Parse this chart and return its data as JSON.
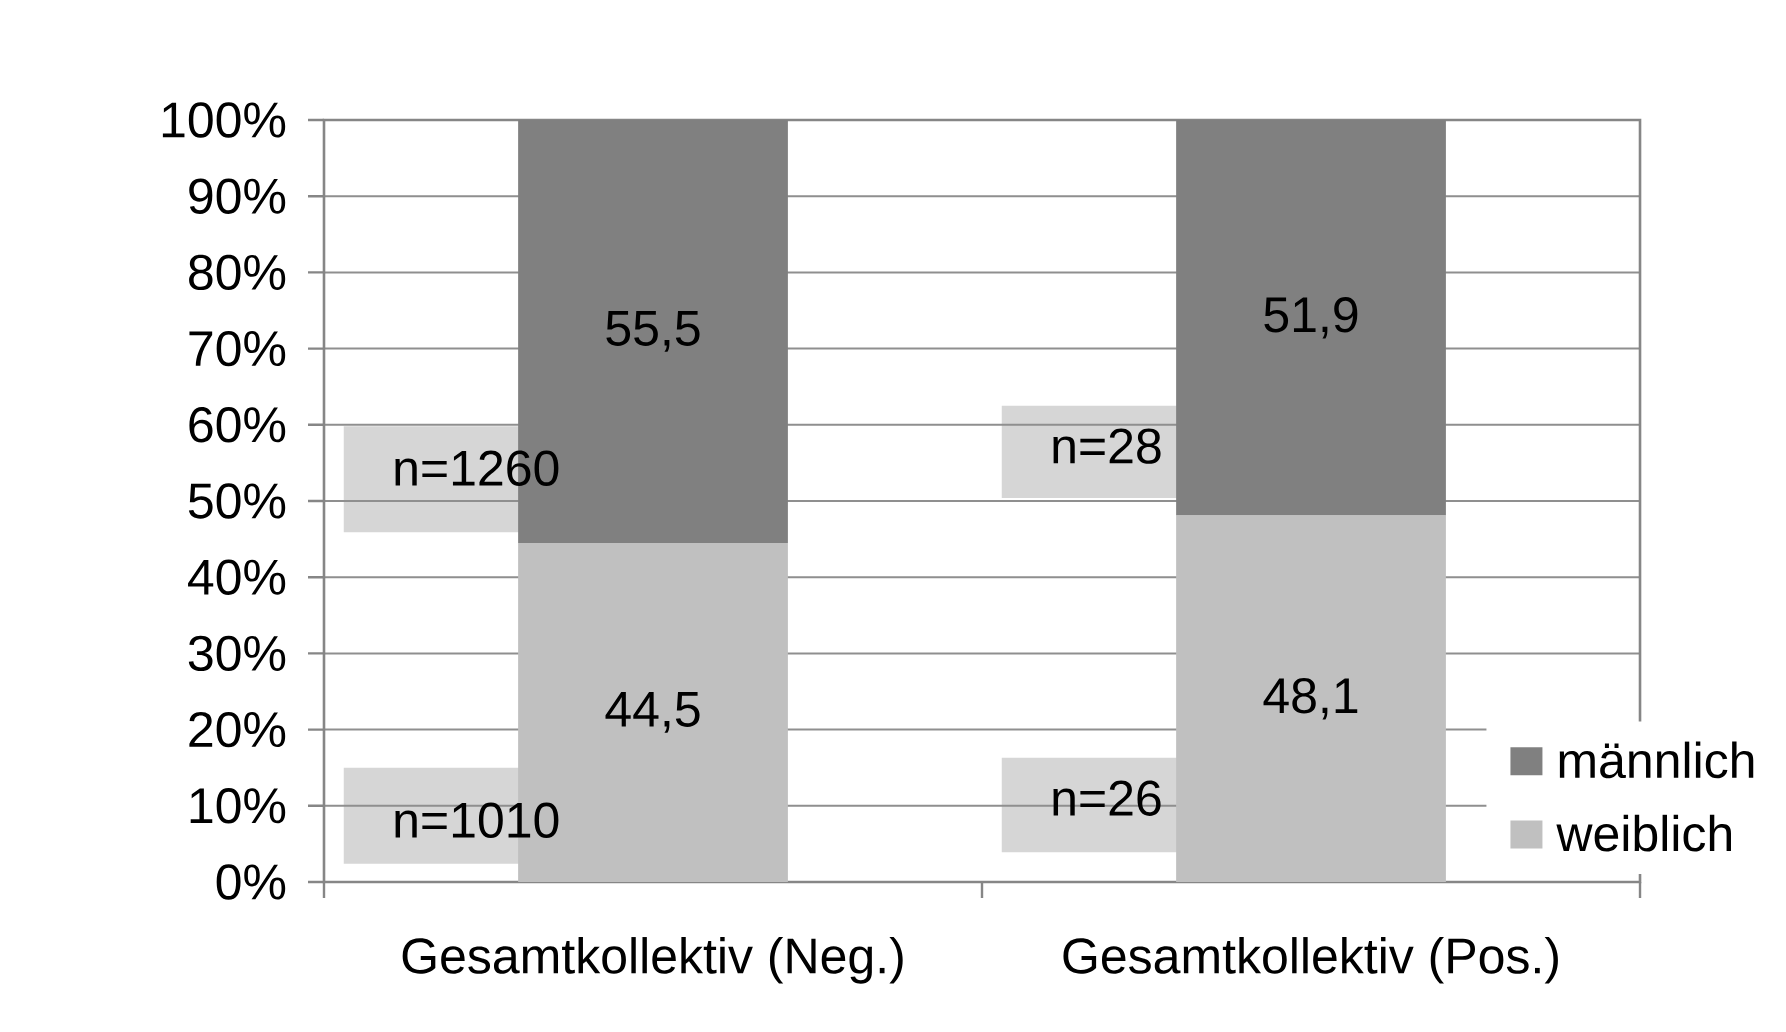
{
  "chart_data": {
    "type": "bar",
    "stacked": true,
    "categories": [
      "Gesamtkollektiv (Neg.)",
      "Gesamtkollektiv (Pos.)"
    ],
    "series": [
      {
        "name": "weiblich",
        "color": "#c0c0c0",
        "values": [
          44.5,
          48.1
        ],
        "value_labels": [
          "44,5",
          "48,1"
        ]
      },
      {
        "name": "männlich",
        "color": "#808080",
        "values": [
          55.5,
          51.9
        ],
        "value_labels": [
          "55,5",
          "51,9"
        ]
      }
    ],
    "ylim": [
      0,
      100
    ],
    "yticks": [
      {
        "value": 0,
        "label": "0%"
      },
      {
        "value": 10,
        "label": "10%"
      },
      {
        "value": 20,
        "label": "20%"
      },
      {
        "value": 30,
        "label": "30%"
      },
      {
        "value": 40,
        "label": "40%"
      },
      {
        "value": 50,
        "label": "50%"
      },
      {
        "value": 60,
        "label": "60%"
      },
      {
        "value": 70,
        "label": "70%"
      },
      {
        "value": 80,
        "label": "80%"
      },
      {
        "value": 90,
        "label": "90%"
      },
      {
        "value": 100,
        "label": "100%"
      }
    ],
    "grid": "y",
    "legend": "bottom right",
    "annotations": [
      "n=1260",
      "n=1010",
      "n=28",
      "n=26"
    ]
  }
}
